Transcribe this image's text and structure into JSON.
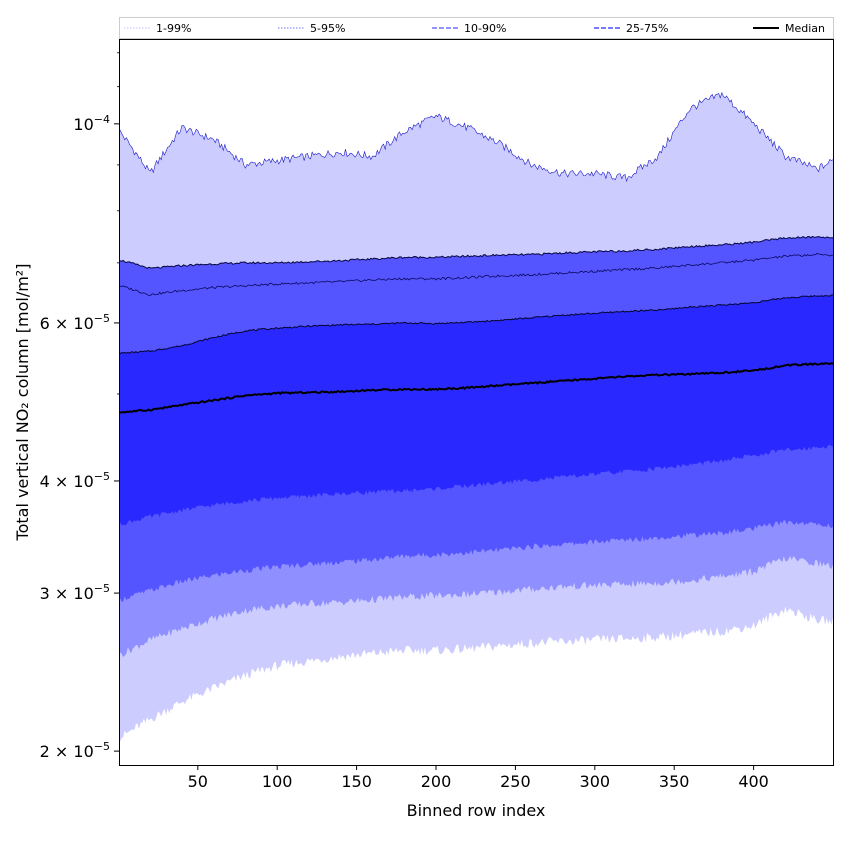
{
  "chart_data": {
    "type": "area",
    "xlabel": "Binned row index",
    "ylabel": "Total vertical NO₂ column [mol/m²]",
    "x_scale": "linear",
    "y_scale": "log",
    "xlim": [
      1,
      450
    ],
    "ylim": [
      1.93e-05,
      0.000124
    ],
    "x_ticks": [
      50,
      100,
      150,
      200,
      250,
      300,
      350,
      400
    ],
    "x_tick_labels": [
      "50",
      "100",
      "150",
      "200",
      "250",
      "300",
      "350",
      "400"
    ],
    "y_ticks": [
      2e-05,
      3e-05,
      4e-05,
      6e-05,
      0.0001
    ],
    "y_tick_labels": [
      {
        "mantissa": "2 × 10",
        "exp": "−5"
      },
      {
        "mantissa": "3 × 10",
        "exp": "−5"
      },
      {
        "mantissa": "4 × 10",
        "exp": "−5"
      },
      {
        "mantissa": "6 × 10",
        "exp": "−5"
      },
      {
        "mantissa": "",
        "prefix": "10",
        "exp": "−4"
      }
    ],
    "legend_position": "top, spanning width",
    "grid": false,
    "legend": [
      {
        "label": "1-99%",
        "color": "#ccccff",
        "style": "dotted"
      },
      {
        "label": "5-95%",
        "color": "#8f8fff",
        "style": "dotted"
      },
      {
        "label": "10-90%",
        "color": "#5555ff",
        "style": "dashed"
      },
      {
        "label": "25-75%",
        "color": "#2929ff",
        "style": "dashed"
      },
      {
        "label": "Median",
        "color": "#000000",
        "style": "solid"
      }
    ],
    "x": [
      1,
      20,
      40,
      60,
      80,
      100,
      120,
      140,
      160,
      180,
      200,
      220,
      240,
      260,
      280,
      300,
      320,
      340,
      360,
      380,
      400,
      420,
      440,
      450
    ],
    "bands": [
      {
        "name": "1-99%",
        "color": "#ccccff",
        "lower": [
          2.07e-05,
          2.17e-05,
          2.27e-05,
          2.35e-05,
          2.43e-05,
          2.49e-05,
          2.52e-05,
          2.55e-05,
          2.57e-05,
          2.59e-05,
          2.59e-05,
          2.6e-05,
          2.62e-05,
          2.64e-05,
          2.65e-05,
          2.66e-05,
          2.67e-05,
          2.68e-05,
          2.7e-05,
          2.72e-05,
          2.76e-05,
          2.88e-05,
          2.8e-05,
          2.79e-05
        ],
        "upper": [
          9.8e-05,
          8.8e-05,
          9.9e-05,
          9.6e-05,
          9e-05,
          9.1e-05,
          9.2e-05,
          9.3e-05,
          9.2e-05,
          9.8e-05,
          0.000102,
          9.9e-05,
          9.5e-05,
          9e-05,
          8.8e-05,
          8.8e-05,
          8.7e-05,
          9.2e-05,
          0.000104,
          0.000108,
          0.0001,
          9.2e-05,
          8.9e-05,
          9.1e-05
        ]
      },
      {
        "name": "5-95%",
        "color": "#8f8fff",
        "lower": [
          2.56e-05,
          2.66e-05,
          2.74e-05,
          2.81e-05,
          2.87e-05,
          2.9e-05,
          2.92e-05,
          2.93e-05,
          2.95e-05,
          2.97e-05,
          2.98e-05,
          2.99e-05,
          3.01e-05,
          3.03e-05,
          3.05e-05,
          3.06e-05,
          3.07e-05,
          3.08e-05,
          3.1e-05,
          3.13e-05,
          3.17e-05,
          3.28e-05,
          3.24e-05,
          3.21e-05
        ]
      },
      {
        "name": "10-90%",
        "color": "#5555ff",
        "lower": [
          2.95e-05,
          3.02e-05,
          3.09e-05,
          3.14e-05,
          3.18e-05,
          3.21e-05,
          3.23e-05,
          3.25e-05,
          3.27e-05,
          3.3e-05,
          3.31e-05,
          3.33e-05,
          3.35e-05,
          3.38e-05,
          3.4e-05,
          3.42e-05,
          3.44e-05,
          3.46e-05,
          3.48e-05,
          3.5e-05,
          3.54e-05,
          3.6e-05,
          3.58e-05,
          3.56e-05
        ],
        "upper": [
          7.05e-05,
          6.9e-05,
          6.95e-05,
          6.98e-05,
          7e-05,
          7e-05,
          7.02e-05,
          7.04e-05,
          7.07e-05,
          7.1e-05,
          7.1e-05,
          7.12e-05,
          7.14e-05,
          7.15e-05,
          7.18e-05,
          7.2e-05,
          7.22e-05,
          7.25e-05,
          7.3e-05,
          7.33e-05,
          7.38e-05,
          7.46e-05,
          7.48e-05,
          7.47e-05
        ]
      },
      {
        "name": "25-75%",
        "color": "#2929ff",
        "lower": [
          3.58e-05,
          3.65e-05,
          3.71e-05,
          3.76e-05,
          3.8e-05,
          3.83e-05,
          3.85e-05,
          3.87e-05,
          3.89e-05,
          3.9e-05,
          3.92e-05,
          3.95e-05,
          3.98e-05,
          4.01e-05,
          4.04e-05,
          4.07e-05,
          4.1e-05,
          4.13e-05,
          4.17e-05,
          4.21e-05,
          4.27e-05,
          4.33e-05,
          4.36e-05,
          4.38e-05
        ],
        "upper": [
          5.55e-05,
          5.58e-05,
          5.66e-05,
          5.78e-05,
          5.88e-05,
          5.92e-05,
          5.95e-05,
          5.97e-05,
          5.98e-05,
          6e-05,
          5.99e-05,
          6.01e-05,
          6.04e-05,
          6.08e-05,
          6.12e-05,
          6.15e-05,
          6.18e-05,
          6.2e-05,
          6.25e-05,
          6.28e-05,
          6.32e-05,
          6.4e-05,
          6.43e-05,
          6.44e-05
        ]
      }
    ],
    "band_5_95_upper": [
      6.6e-05,
      6.45e-05,
      6.52e-05,
      6.57e-05,
      6.6e-05,
      6.63e-05,
      6.65e-05,
      6.67e-05,
      6.7e-05,
      6.72e-05,
      6.72e-05,
      6.74e-05,
      6.77e-05,
      6.79e-05,
      6.82e-05,
      6.85e-05,
      6.88e-05,
      6.91e-05,
      6.96e-05,
      7e-05,
      7.05e-05,
      7.12e-05,
      7.15e-05,
      7.14e-05
    ],
    "series": [
      {
        "name": "Median",
        "color": "#000000",
        "values": [
          4.77e-05,
          4.8e-05,
          4.86e-05,
          4.92e-05,
          4.98e-05,
          5.01e-05,
          5.02e-05,
          5.03e-05,
          5.05e-05,
          5.06e-05,
          5.06e-05,
          5.08e-05,
          5.11e-05,
          5.14e-05,
          5.17e-05,
          5.2e-05,
          5.23e-05,
          5.25e-05,
          5.26e-05,
          5.28e-05,
          5.31e-05,
          5.38e-05,
          5.4e-05,
          5.41e-05
        ]
      }
    ]
  }
}
